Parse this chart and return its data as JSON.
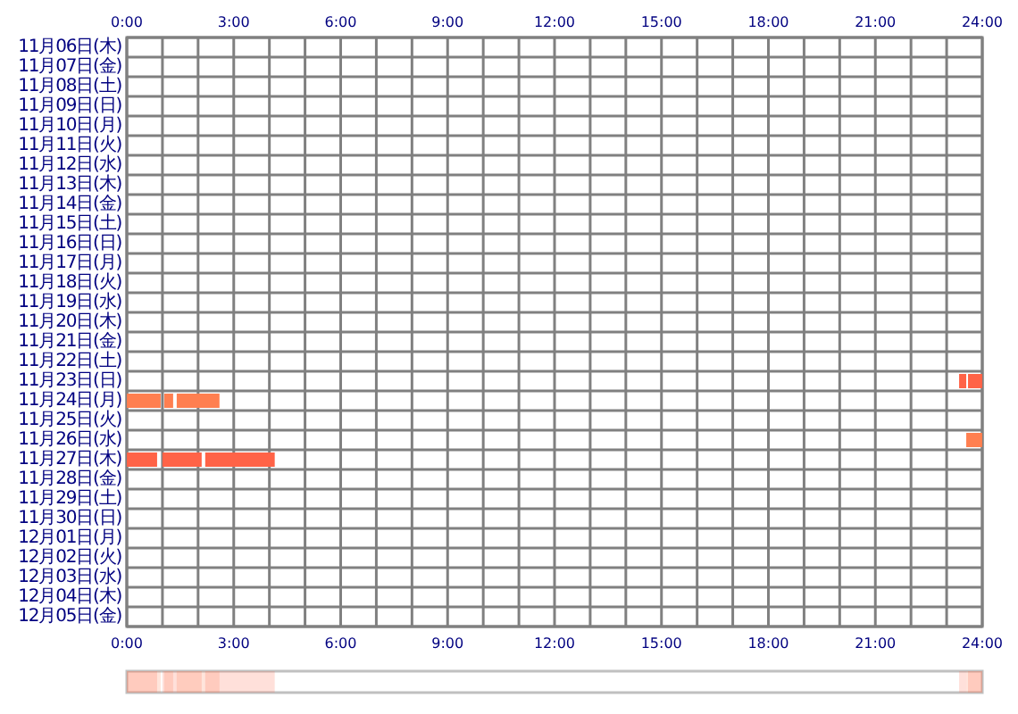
{
  "chart_data": {
    "type": "bar",
    "orientation": "horizontal",
    "grid": true,
    "categories": [
      "11月06日(木)",
      "11月07日(金)",
      "11月08日(土)",
      "11月09日(日)",
      "11月10日(月)",
      "11月11日(火)",
      "11月12日(水)",
      "11月13日(木)",
      "11月14日(金)",
      "11月15日(土)",
      "11月16日(日)",
      "11月17日(月)",
      "11月18日(火)",
      "11月19日(水)",
      "11月20日(木)",
      "11月21日(金)",
      "11月22日(土)",
      "11月23日(日)",
      "11月24日(月)",
      "11月25日(火)",
      "11月26日(水)",
      "11月27日(木)",
      "11月28日(金)",
      "11月29日(土)",
      "11月30日(日)",
      "12月01日(月)",
      "12月02日(火)",
      "12月03日(水)",
      "12月04日(木)",
      "12月05日(金)"
    ],
    "xlim": [
      0,
      24
    ],
    "xticks": [
      {
        "value": 0,
        "label": "0:00"
      },
      {
        "value": 1,
        "label": null
      },
      {
        "value": 2,
        "label": null
      },
      {
        "value": 3,
        "label": "3:00"
      },
      {
        "value": 4,
        "label": null
      },
      {
        "value": 5,
        "label": null
      },
      {
        "value": 6,
        "label": "6:00"
      },
      {
        "value": 7,
        "label": null
      },
      {
        "value": 8,
        "label": null
      },
      {
        "value": 9,
        "label": "9:00"
      },
      {
        "value": 10,
        "label": null
      },
      {
        "value": 11,
        "label": null
      },
      {
        "value": 12,
        "label": "12:00"
      },
      {
        "value": 13,
        "label": null
      },
      {
        "value": 14,
        "label": null
      },
      {
        "value": 15,
        "label": "15:00"
      },
      {
        "value": 16,
        "label": null
      },
      {
        "value": 17,
        "label": null
      },
      {
        "value": 18,
        "label": "18:00"
      },
      {
        "value": 19,
        "label": null
      },
      {
        "value": 20,
        "label": null
      },
      {
        "value": 21,
        "label": "21:00"
      },
      {
        "value": 22,
        "label": null
      },
      {
        "value": 23,
        "label": null
      },
      {
        "value": 24,
        "label": "24:00"
      }
    ],
    "x2lim": [
      0,
      24
    ],
    "x2ticks": [
      {
        "value": 0,
        "label": "0:00"
      },
      {
        "value": 3,
        "label": "3:00"
      },
      {
        "value": 6,
        "label": "6:00"
      },
      {
        "value": 9,
        "label": "9:00"
      },
      {
        "value": 12,
        "label": "12:00"
      },
      {
        "value": 15,
        "label": "15:00"
      },
      {
        "value": 18,
        "label": "18:00"
      },
      {
        "value": 21,
        "label": "21:00"
      },
      {
        "value": 24,
        "label": "24:00"
      }
    ],
    "series": [
      {
        "base": [
          null,
          null,
          null,
          null,
          null,
          null,
          null,
          null,
          null,
          null,
          null,
          null,
          null,
          null,
          null,
          null,
          null,
          23.35,
          0,
          null,
          23.55,
          0,
          null,
          null,
          null,
          null,
          null,
          null,
          null,
          null
        ],
        "values": [
          null,
          null,
          null,
          null,
          null,
          null,
          null,
          null,
          null,
          null,
          null,
          null,
          null,
          null,
          null,
          null,
          null,
          0.2,
          0.95,
          null,
          0.45,
          0.85,
          null,
          null,
          null,
          null,
          null,
          null,
          null,
          null
        ],
        "colors": [
          null,
          null,
          null,
          null,
          null,
          null,
          null,
          null,
          null,
          null,
          null,
          null,
          null,
          null,
          null,
          null,
          null,
          "#ff6347",
          "#ff7f50",
          null,
          "#ff7f50",
          "#ff6347",
          null,
          null,
          null,
          null,
          null,
          null,
          null,
          null
        ]
      },
      {
        "base": [
          null,
          null,
          null,
          null,
          null,
          null,
          null,
          null,
          null,
          null,
          null,
          null,
          null,
          null,
          null,
          null,
          null,
          23.6,
          1.05,
          null,
          null,
          1,
          null,
          null,
          null,
          null,
          null,
          null,
          null,
          null
        ],
        "values": [
          null,
          null,
          null,
          null,
          null,
          null,
          null,
          null,
          null,
          null,
          null,
          null,
          null,
          null,
          null,
          null,
          null,
          0.4,
          0.25,
          null,
          null,
          1.1,
          null,
          null,
          null,
          null,
          null,
          null,
          null,
          null
        ],
        "colors": [
          null,
          null,
          null,
          null,
          null,
          null,
          null,
          null,
          null,
          null,
          null,
          null,
          null,
          null,
          null,
          null,
          null,
          "#ff6347",
          "#ff7f50",
          null,
          null,
          "#ff6347",
          null,
          null,
          null,
          null,
          null,
          null,
          null,
          null
        ]
      },
      {
        "base": [
          null,
          null,
          null,
          null,
          null,
          null,
          null,
          null,
          null,
          null,
          null,
          null,
          null,
          null,
          null,
          null,
          null,
          null,
          1.4,
          null,
          null,
          2.2,
          null,
          null,
          null,
          null,
          null,
          null,
          null,
          null
        ],
        "values": [
          null,
          null,
          null,
          null,
          null,
          null,
          null,
          null,
          null,
          null,
          null,
          null,
          null,
          null,
          null,
          null,
          null,
          null,
          1.2,
          null,
          null,
          1.95,
          null,
          null,
          null,
          null,
          null,
          null,
          null,
          null
        ],
        "colors": [
          null,
          null,
          null,
          null,
          null,
          null,
          null,
          null,
          null,
          null,
          null,
          null,
          null,
          null,
          null,
          null,
          null,
          null,
          "#ff7f50",
          null,
          null,
          "#ff6347",
          null,
          null,
          null,
          null,
          null,
          null,
          null,
          null
        ]
      }
    ]
  }
}
